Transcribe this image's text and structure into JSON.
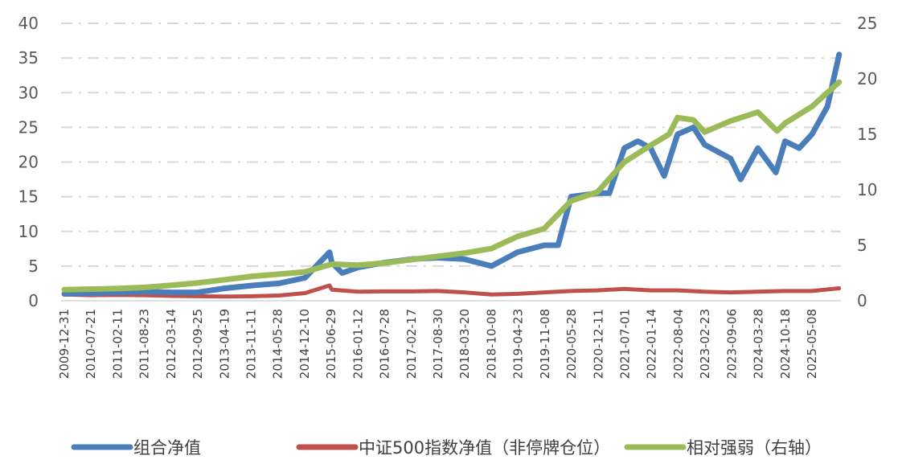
{
  "chart_data": {
    "type": "line",
    "title": "",
    "xlabel": "",
    "ylabel": "",
    "y_left_lim": [
      0,
      40
    ],
    "y_left_ticks": [
      0,
      5,
      10,
      15,
      20,
      25,
      30,
      35,
      40
    ],
    "y_right_lim": [
      0,
      25
    ],
    "y_right_ticks": [
      0,
      5,
      10,
      15,
      20,
      25
    ],
    "grid": "horizontal dashed-dot, light gray",
    "legend_placement": "bottom",
    "x_tick_labels": [
      "2009-12-31",
      "2010-07-21",
      "2011-02-11",
      "2011-08-23",
      "2012-03-14",
      "2012-09-25",
      "2013-04-19",
      "2013-11-11",
      "2014-05-28",
      "2014-12-10",
      "2015-06-29",
      "2016-01-12",
      "2016-07-28",
      "2017-02-17",
      "2017-08-30",
      "2018-03-20",
      "2018-10-08",
      "2019-04-23",
      "2019-11-08",
      "2020-05-28",
      "2020-12-11",
      "2021-07-01",
      "2022-01-14",
      "2022-08-04",
      "2023-02-23",
      "2023-09-06",
      "2024-03-28",
      "2024-10-18",
      "2025-05-08"
    ],
    "series": [
      {
        "name": "组合净值",
        "axis": "left",
        "color": "#4a7ebb",
        "points": [
          [
            "2009-12-31",
            1.0
          ],
          [
            "2010-07-21",
            1.1
          ],
          [
            "2011-02-11",
            1.2
          ],
          [
            "2011-08-23",
            1.3
          ],
          [
            "2012-03-14",
            1.2
          ],
          [
            "2012-09-25",
            1.2
          ],
          [
            "2013-04-19",
            1.8
          ],
          [
            "2013-11-11",
            2.2
          ],
          [
            "2014-05-28",
            2.5
          ],
          [
            "2014-12-10",
            3.3
          ],
          [
            "2015-06-12",
            7.0
          ],
          [
            "2015-06-29",
            5.5
          ],
          [
            "2015-09-15",
            4.0
          ],
          [
            "2016-01-12",
            4.8
          ],
          [
            "2016-07-28",
            5.5
          ],
          [
            "2017-02-17",
            6.0
          ],
          [
            "2017-08-30",
            6.2
          ],
          [
            "2018-03-20",
            6.0
          ],
          [
            "2018-10-08",
            5.0
          ],
          [
            "2019-04-23",
            7.0
          ],
          [
            "2019-11-08",
            8.0
          ],
          [
            "2020-02-20",
            8.0
          ],
          [
            "2020-05-28",
            15.0
          ],
          [
            "2020-12-11",
            15.5
          ],
          [
            "2021-03-10",
            15.5
          ],
          [
            "2021-07-01",
            22.0
          ],
          [
            "2021-10-10",
            23.0
          ],
          [
            "2022-01-14",
            22.0
          ],
          [
            "2022-04-26",
            18.0
          ],
          [
            "2022-08-04",
            24.0
          ],
          [
            "2022-12-01",
            25.0
          ],
          [
            "2023-02-23",
            22.5
          ],
          [
            "2023-09-06",
            20.5
          ],
          [
            "2023-11-20",
            17.5
          ],
          [
            "2024-03-28",
            22.0
          ],
          [
            "2024-08-10",
            18.5
          ],
          [
            "2024-10-18",
            23.0
          ],
          [
            "2025-02-01",
            22.0
          ],
          [
            "2025-05-08",
            24.0
          ],
          [
            "2025-09-01",
            28.0
          ],
          [
            "2025-11-28",
            35.5
          ]
        ]
      },
      {
        "name": "中证500指数净值（非停牌仓位）",
        "axis": "left",
        "color": "#c0504d",
        "points": [
          [
            "2009-12-31",
            0.9
          ],
          [
            "2010-07-21",
            0.8
          ],
          [
            "2011-02-11",
            0.85
          ],
          [
            "2011-08-23",
            0.8
          ],
          [
            "2012-03-14",
            0.7
          ],
          [
            "2012-09-25",
            0.65
          ],
          [
            "2013-04-19",
            0.6
          ],
          [
            "2013-11-11",
            0.65
          ],
          [
            "2014-05-28",
            0.75
          ],
          [
            "2014-12-10",
            1.1
          ],
          [
            "2015-06-12",
            2.2
          ],
          [
            "2015-06-29",
            1.6
          ],
          [
            "2016-01-12",
            1.3
          ],
          [
            "2016-07-28",
            1.35
          ],
          [
            "2017-02-17",
            1.35
          ],
          [
            "2017-08-30",
            1.4
          ],
          [
            "2018-03-20",
            1.2
          ],
          [
            "2018-10-08",
            0.9
          ],
          [
            "2019-04-23",
            1.0
          ],
          [
            "2019-11-08",
            1.2
          ],
          [
            "2020-05-28",
            1.4
          ],
          [
            "2020-12-11",
            1.5
          ],
          [
            "2021-07-01",
            1.7
          ],
          [
            "2022-01-14",
            1.5
          ],
          [
            "2022-08-04",
            1.5
          ],
          [
            "2023-02-23",
            1.3
          ],
          [
            "2023-09-06",
            1.2
          ],
          [
            "2024-03-28",
            1.3
          ],
          [
            "2024-10-18",
            1.4
          ],
          [
            "2025-05-08",
            1.4
          ],
          [
            "2025-11-28",
            1.8
          ]
        ]
      },
      {
        "name": "相对强弱（右轴）",
        "axis": "right",
        "color": "#9bbb59",
        "points": [
          [
            "2009-12-31",
            1.0
          ],
          [
            "2010-07-21",
            1.05
          ],
          [
            "2011-02-11",
            1.1
          ],
          [
            "2011-08-23",
            1.2
          ],
          [
            "2012-03-14",
            1.4
          ],
          [
            "2012-09-25",
            1.6
          ],
          [
            "2013-04-19",
            1.9
          ],
          [
            "2013-11-11",
            2.2
          ],
          [
            "2014-05-28",
            2.4
          ],
          [
            "2014-12-10",
            2.6
          ],
          [
            "2015-06-29",
            3.3
          ],
          [
            "2016-01-12",
            3.2
          ],
          [
            "2016-07-28",
            3.4
          ],
          [
            "2017-02-17",
            3.7
          ],
          [
            "2017-08-30",
            4.0
          ],
          [
            "2018-03-20",
            4.3
          ],
          [
            "2018-10-08",
            4.7
          ],
          [
            "2019-04-23",
            5.8
          ],
          [
            "2019-11-08",
            6.5
          ],
          [
            "2020-05-28",
            9.0
          ],
          [
            "2020-12-11",
            9.8
          ],
          [
            "2021-07-01",
            12.5
          ],
          [
            "2022-01-14",
            14.0
          ],
          [
            "2022-06-01",
            15.0
          ],
          [
            "2022-08-04",
            16.5
          ],
          [
            "2022-12-01",
            16.3
          ],
          [
            "2023-02-23",
            15.2
          ],
          [
            "2023-09-06",
            16.2
          ],
          [
            "2024-03-28",
            17.0
          ],
          [
            "2024-08-20",
            15.3
          ],
          [
            "2024-10-18",
            16.0
          ],
          [
            "2025-05-08",
            17.5
          ],
          [
            "2025-11-28",
            19.7
          ]
        ]
      }
    ]
  }
}
